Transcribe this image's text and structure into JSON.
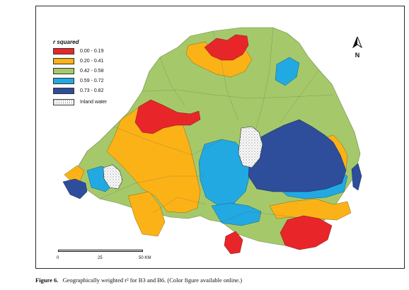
{
  "legend": {
    "title": "r squared",
    "items": [
      {
        "label": "0.00 - 0.19",
        "color": "#e8262a"
      },
      {
        "label": "0.20 - 0.41",
        "color": "#fbb217"
      },
      {
        "label": "0.42 - 0.58",
        "color": "#a5c96a"
      },
      {
        "label": "0.59 - 0.72",
        "color": "#22a9e1"
      },
      {
        "label": "0.73 - 0.82",
        "color": "#2e4d9b"
      }
    ],
    "inland_water_label": "Inland water"
  },
  "north_arrow": {
    "label": "N"
  },
  "scale_bar": {
    "ticks": [
      "0",
      "25",
      "50 KM"
    ]
  },
  "caption": {
    "label": "Figure 6.",
    "text": "Geographically weighted r² for B3 and B6. (Color figure available online.)"
  }
}
